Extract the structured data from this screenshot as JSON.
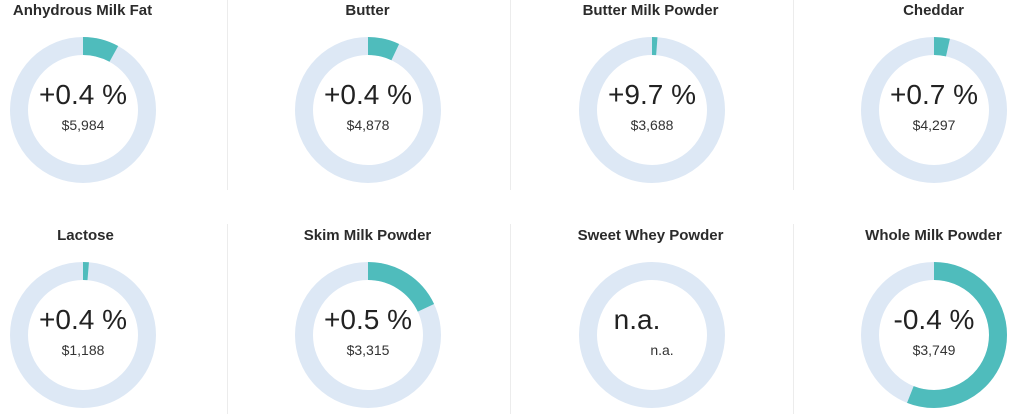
{
  "colors": {
    "track": "#dde8f5",
    "progress": "#4fbcbc"
  },
  "chart_data": {
    "type": "donut-grid",
    "items": [
      {
        "name": "Anhydrous Milk Fat",
        "change_label": "+0.4 %",
        "value_label": "$5,984",
        "progress": 0.08
      },
      {
        "name": "Butter",
        "change_label": "+0.4 %",
        "value_label": "$4,878",
        "progress": 0.07
      },
      {
        "name": "Butter Milk Powder",
        "change_label": "+9.7 %",
        "value_label": "$3,688",
        "progress": 0.012
      },
      {
        "name": "Cheddar",
        "change_label": "+0.7 %",
        "value_label": "$4,297",
        "progress": 0.035
      },
      {
        "name": "Lactose",
        "change_label": "+0.4 %",
        "value_label": "$1,188",
        "progress": 0.013
      },
      {
        "name": "Skim Milk Powder",
        "change_label": "+0.5 %",
        "value_label": "$3,315",
        "progress": 0.18
      },
      {
        "name": "Sweet Whey Powder",
        "change_label": "n.a.",
        "value_label": "n.a.",
        "progress": 0
      },
      {
        "name": "Whole Milk Powder",
        "change_label": "-0.4 %",
        "value_label": "$3,749",
        "progress": 0.56
      }
    ]
  }
}
